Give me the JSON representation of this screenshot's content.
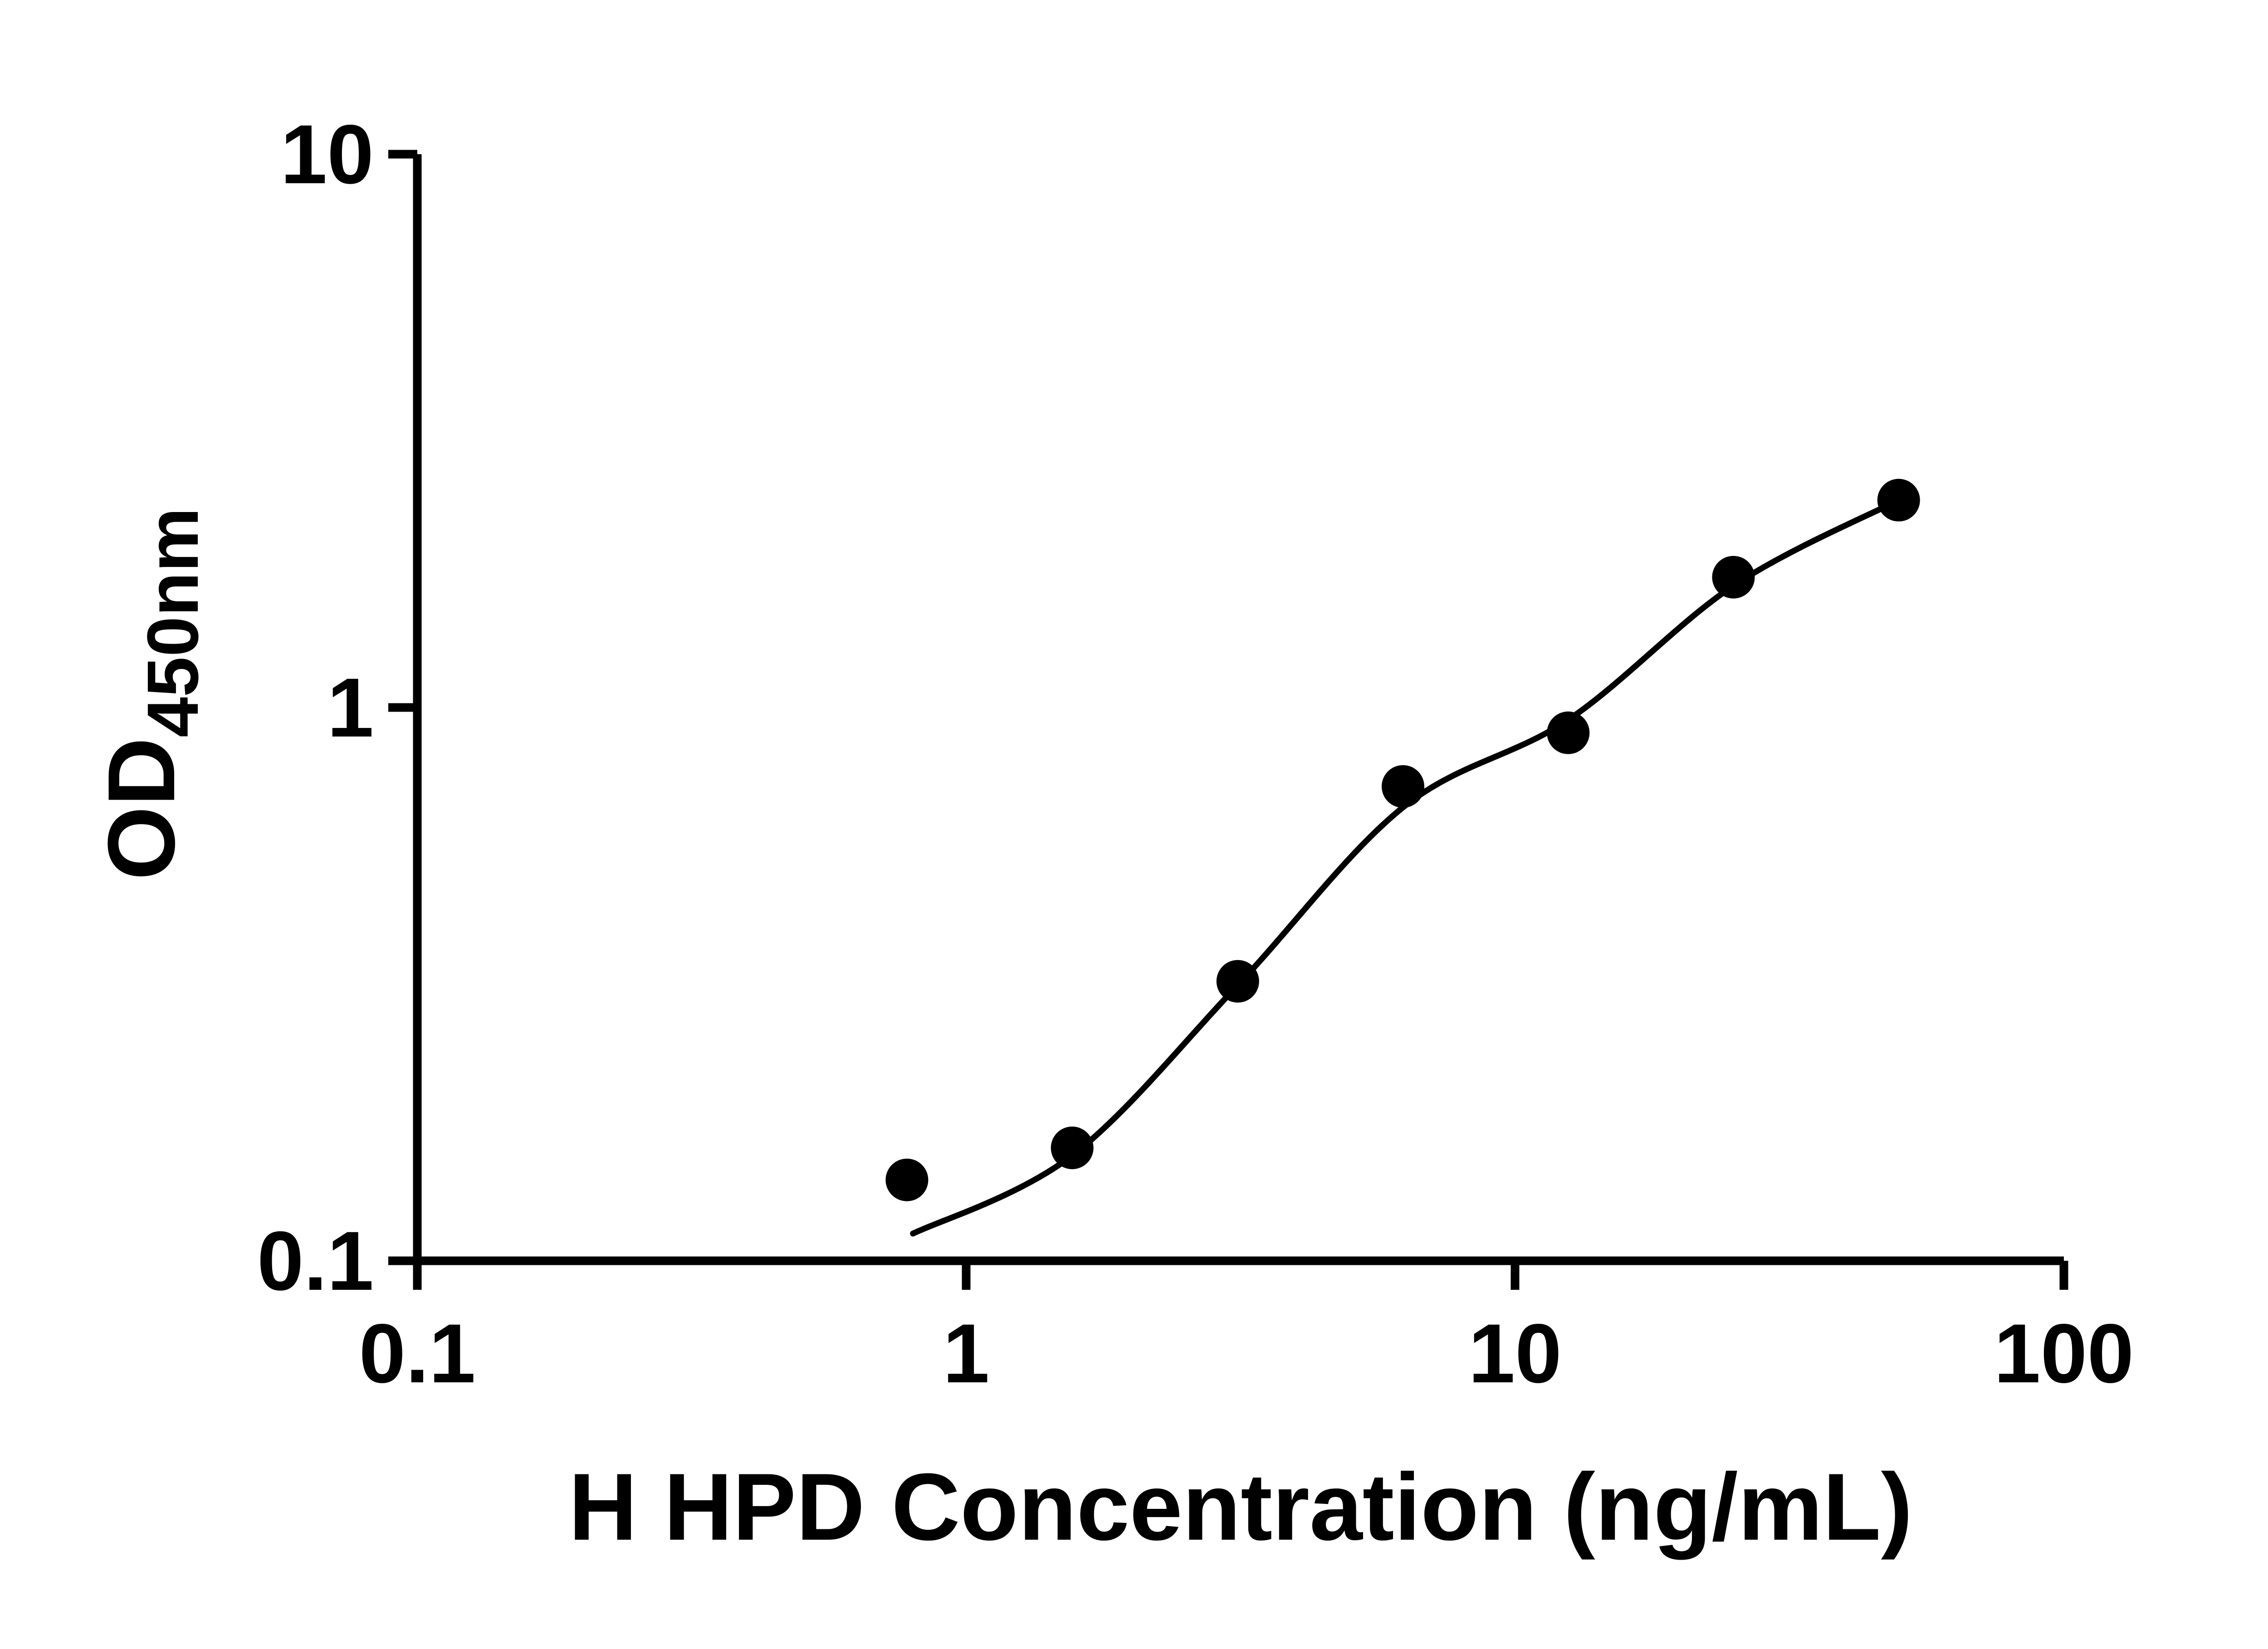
{
  "page": {
    "background_color": "#ffffff"
  },
  "chart_data": {
    "type": "scatter",
    "title": "",
    "xlabel": "H HPD Concentration (ng/mL)",
    "ylabel": "OD450nm",
    "ylabel_parts": {
      "main": "OD",
      "subscript": "450nm"
    },
    "x_scale": "log",
    "y_scale": "log",
    "xlim": [
      0.1,
      100
    ],
    "ylim": [
      0.1,
      10
    ],
    "x_ticks": {
      "values": [
        0.1,
        1,
        10,
        100
      ],
      "labels": [
        "0.1",
        "1",
        "10",
        "100"
      ]
    },
    "y_ticks": {
      "values": [
        0.1,
        1,
        10
      ],
      "labels": [
        "0.1",
        "1",
        "10"
      ]
    },
    "grid": false,
    "legend": "none",
    "colors": {
      "axis": "#000000",
      "text": "#000000",
      "marker": "#000000",
      "line": "#000000"
    },
    "series": [
      {
        "name": "standard-points",
        "type": "scatter",
        "marker": "circle",
        "x": [
          0.78,
          1.56,
          3.125,
          6.25,
          12.5,
          25,
          50
        ],
        "y": [
          0.14,
          0.16,
          0.32,
          0.72,
          0.9,
          1.72,
          2.37
        ]
      },
      {
        "name": "fit-curve",
        "type": "line",
        "x": [
          0.8,
          1.56,
          3.125,
          6.25,
          12.5,
          25,
          50
        ],
        "y": [
          0.112,
          0.155,
          0.315,
          0.66,
          0.95,
          1.66,
          2.37
        ]
      }
    ]
  }
}
